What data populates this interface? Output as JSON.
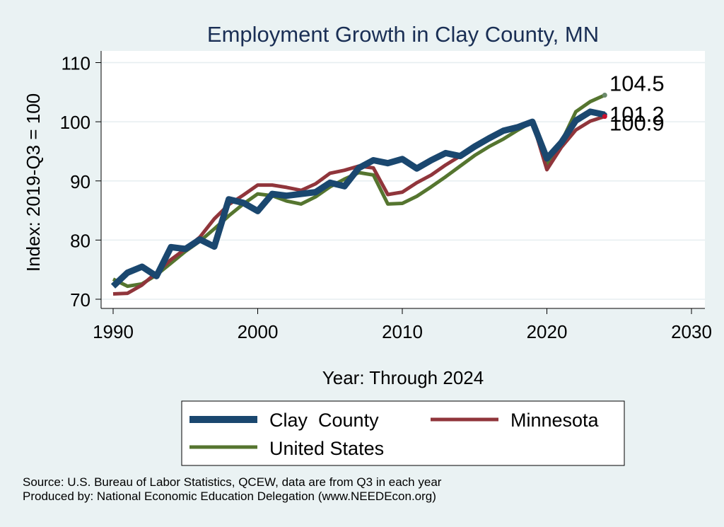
{
  "chart_data": {
    "type": "line",
    "title": "Employment Growth in Clay County, MN",
    "xlabel": "Year: Through 2024",
    "ylabel": "Index: 2019-Q3 = 100",
    "xlim": [
      1990,
      2030
    ],
    "ylim": [
      70,
      110
    ],
    "x_ticks": [
      "1990",
      "2000",
      "2010",
      "2020",
      "2030"
    ],
    "y_ticks": [
      "70",
      "80",
      "90",
      "100",
      "110"
    ],
    "grid": true,
    "legend": "bottom",
    "x": [
      1990,
      1991,
      1992,
      1993,
      1994,
      1995,
      1996,
      1997,
      1998,
      1999,
      2000,
      2001,
      2002,
      2003,
      2004,
      2005,
      2006,
      2007,
      2008,
      2009,
      2010,
      2011,
      2012,
      2013,
      2014,
      2015,
      2016,
      2017,
      2018,
      2019,
      2020,
      2021,
      2022,
      2023,
      2024
    ],
    "series": [
      {
        "name": "Clay  County",
        "color": "#1a476f",
        "end_label": "101.2",
        "values": [
          72.2,
          74.5,
          75.5,
          73.9,
          78.8,
          78.5,
          80.1,
          78.9,
          86.9,
          86.3,
          84.9,
          87.8,
          87.5,
          87.8,
          88.1,
          89.7,
          89.1,
          92.2,
          93.5,
          93.0,
          93.7,
          92.1,
          93.5,
          94.7,
          94.2,
          95.8,
          97.2,
          98.5,
          99.1,
          100.0,
          93.8,
          96.5,
          100.2,
          101.7,
          101.2
        ]
      },
      {
        "name": "Minnesota",
        "color": "#90353b",
        "end_label": "100.9",
        "values": [
          70.9,
          71.0,
          72.4,
          74.5,
          76.7,
          78.5,
          80.5,
          83.6,
          86.0,
          87.6,
          89.3,
          89.3,
          88.9,
          88.4,
          89.5,
          91.3,
          91.8,
          92.5,
          92.2,
          87.7,
          88.1,
          89.7,
          91.0,
          92.7,
          94.2,
          95.9,
          97.4,
          98.5,
          99.2,
          100.0,
          91.9,
          95.7,
          98.6,
          100.1,
          100.9
        ]
      },
      {
        "name": "United States",
        "color": "#55752f",
        "end_label": "104.5",
        "values": [
          73.4,
          72.2,
          72.6,
          74.1,
          76.1,
          78.1,
          79.8,
          81.9,
          84.1,
          86.1,
          87.8,
          87.5,
          86.6,
          86.1,
          87.3,
          89.0,
          90.3,
          91.4,
          91.0,
          86.1,
          86.2,
          87.4,
          89.0,
          90.7,
          92.5,
          94.3,
          95.8,
          97.1,
          98.6,
          100.0,
          92.6,
          96.6,
          101.7,
          103.4,
          104.5
        ]
      }
    ]
  },
  "notes": {
    "source": "Source: U.S. Bureau of Labor Statistics, QCEW, data are from Q3 in each year",
    "produced_by": "Produced by: National Economic Education Delegation (www.NEEDEcon.org)"
  }
}
